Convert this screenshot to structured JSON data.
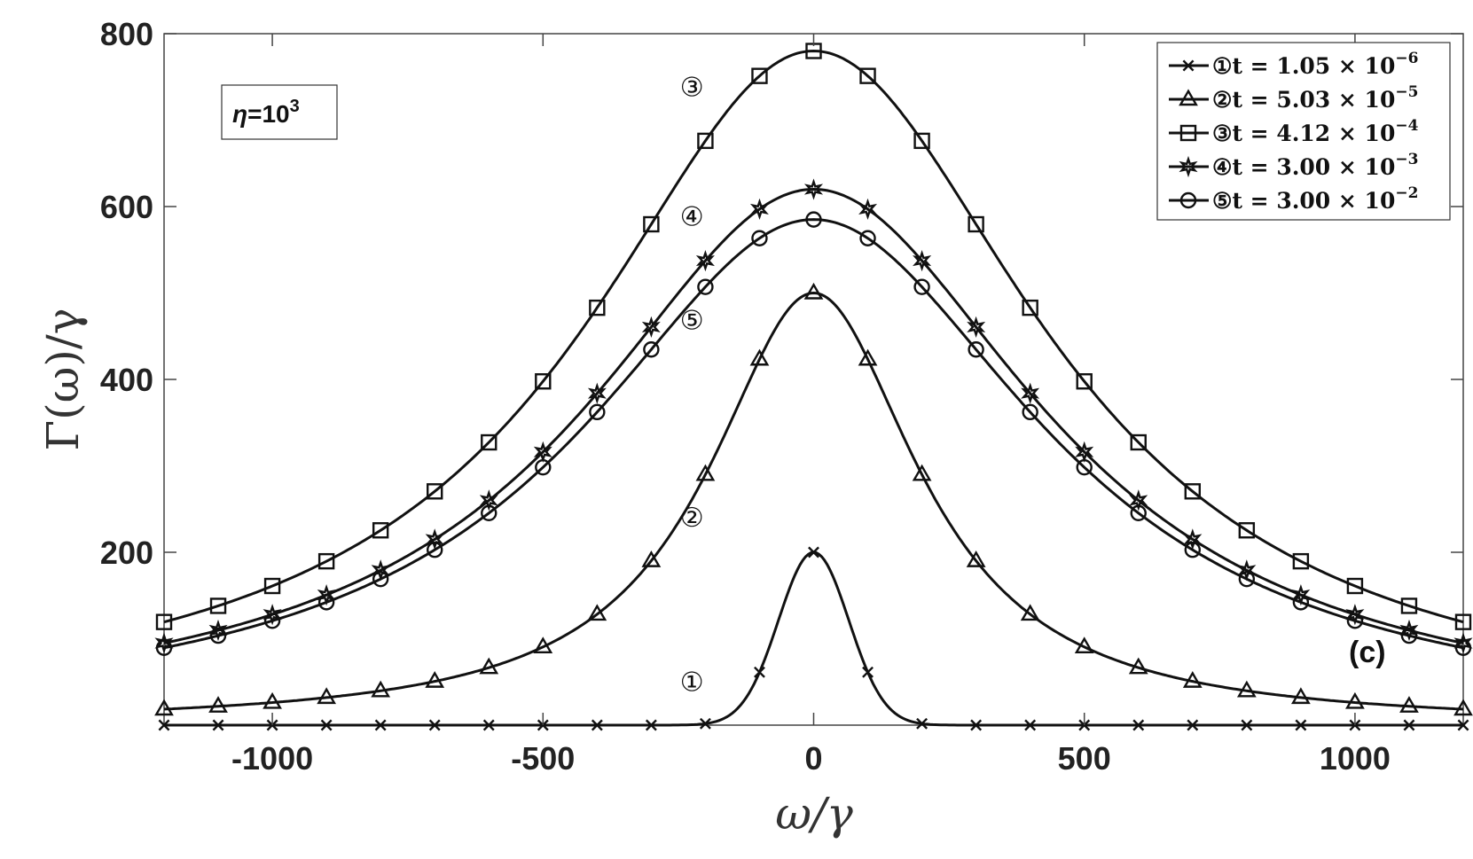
{
  "chart_data": {
    "type": "line",
    "title": "",
    "xlabel": "ω/γ",
    "ylabel": "Γ(ω)/γ",
    "xlim": [
      -1200,
      1200
    ],
    "ylim": [
      0,
      800
    ],
    "xticks": [
      -1000,
      -500,
      0,
      500,
      1000
    ],
    "xtick_labels": [
      "-1000",
      "-500",
      "0",
      "500",
      "1000"
    ],
    "yticks": [
      200,
      400,
      600,
      800
    ],
    "ytick_labels": [
      "200",
      "400",
      "600",
      "800"
    ],
    "grid": false,
    "legend_position": "top-right",
    "annotation": {
      "greek": "η",
      "rest": "=10",
      "sup": "3"
    },
    "panel_label": "(c)",
    "series": [
      {
        "name": "①t = 1.05 × 10",
        "exp": "−6",
        "marker": "x",
        "curve_label": "①",
        "shape": "gauss",
        "peak": 200,
        "sigma": 65,
        "base": 0,
        "label_pos": [
          -225,
          50
        ]
      },
      {
        "name": "②t = 5.03 × 10",
        "exp": "−5",
        "marker": "triangle",
        "curve_label": "②",
        "shape": "lorentz",
        "peak": 500,
        "width": 235,
        "base": 0,
        "label_pos": [
          -225,
          240
        ]
      },
      {
        "name": "③t = 4.12 × 10",
        "exp": "−4",
        "marker": "square",
        "curve_label": "③",
        "shape": "lorentz",
        "peak": 780,
        "width": 510,
        "base": 0,
        "label_pos": [
          -225,
          738
        ]
      },
      {
        "name": "④t = 3.00 × 10",
        "exp": "−3",
        "marker": "star",
        "curve_label": "④",
        "shape": "lorentz",
        "peak": 620,
        "width": 510,
        "base": 0,
        "label_pos": [
          -225,
          588
        ]
      },
      {
        "name": "⑤t = 3.00 × 10",
        "exp": "−2",
        "marker": "circle",
        "curve_label": "⑤",
        "shape": "lorentz",
        "peak": 585,
        "width": 510,
        "base": 0,
        "label_pos": [
          -225,
          468
        ]
      }
    ]
  }
}
